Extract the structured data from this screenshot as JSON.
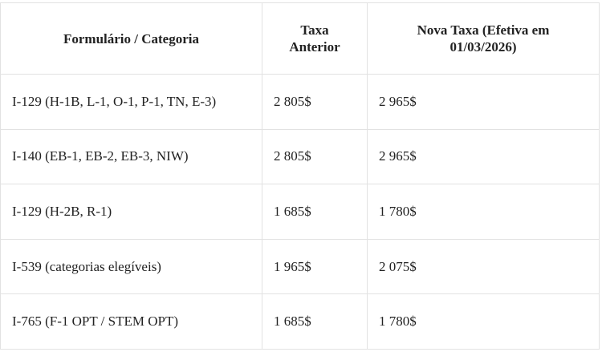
{
  "table": {
    "headers": [
      "Formulário / Categoria",
      "Taxa Anterior",
      "Nova Taxa (Efetiva em 01/03/2026)"
    ],
    "rows": [
      [
        "I-129 (H-1B, L-1, O-1, P-1, TN, E-3)",
        "2 805$",
        "2 965$"
      ],
      [
        "I-140 (EB-1, EB-2, EB-3, NIW)",
        "2 805$",
        "2 965$"
      ],
      [
        "I-129 (H-2B, R-1)",
        "1 685$",
        "1 780$"
      ],
      [
        "I-539 (categorias elegíveis)",
        "1 965$",
        "2 075$"
      ],
      [
        "I-765 (F-1 OPT / STEM OPT)",
        "1 685$",
        "1 780$"
      ]
    ]
  }
}
